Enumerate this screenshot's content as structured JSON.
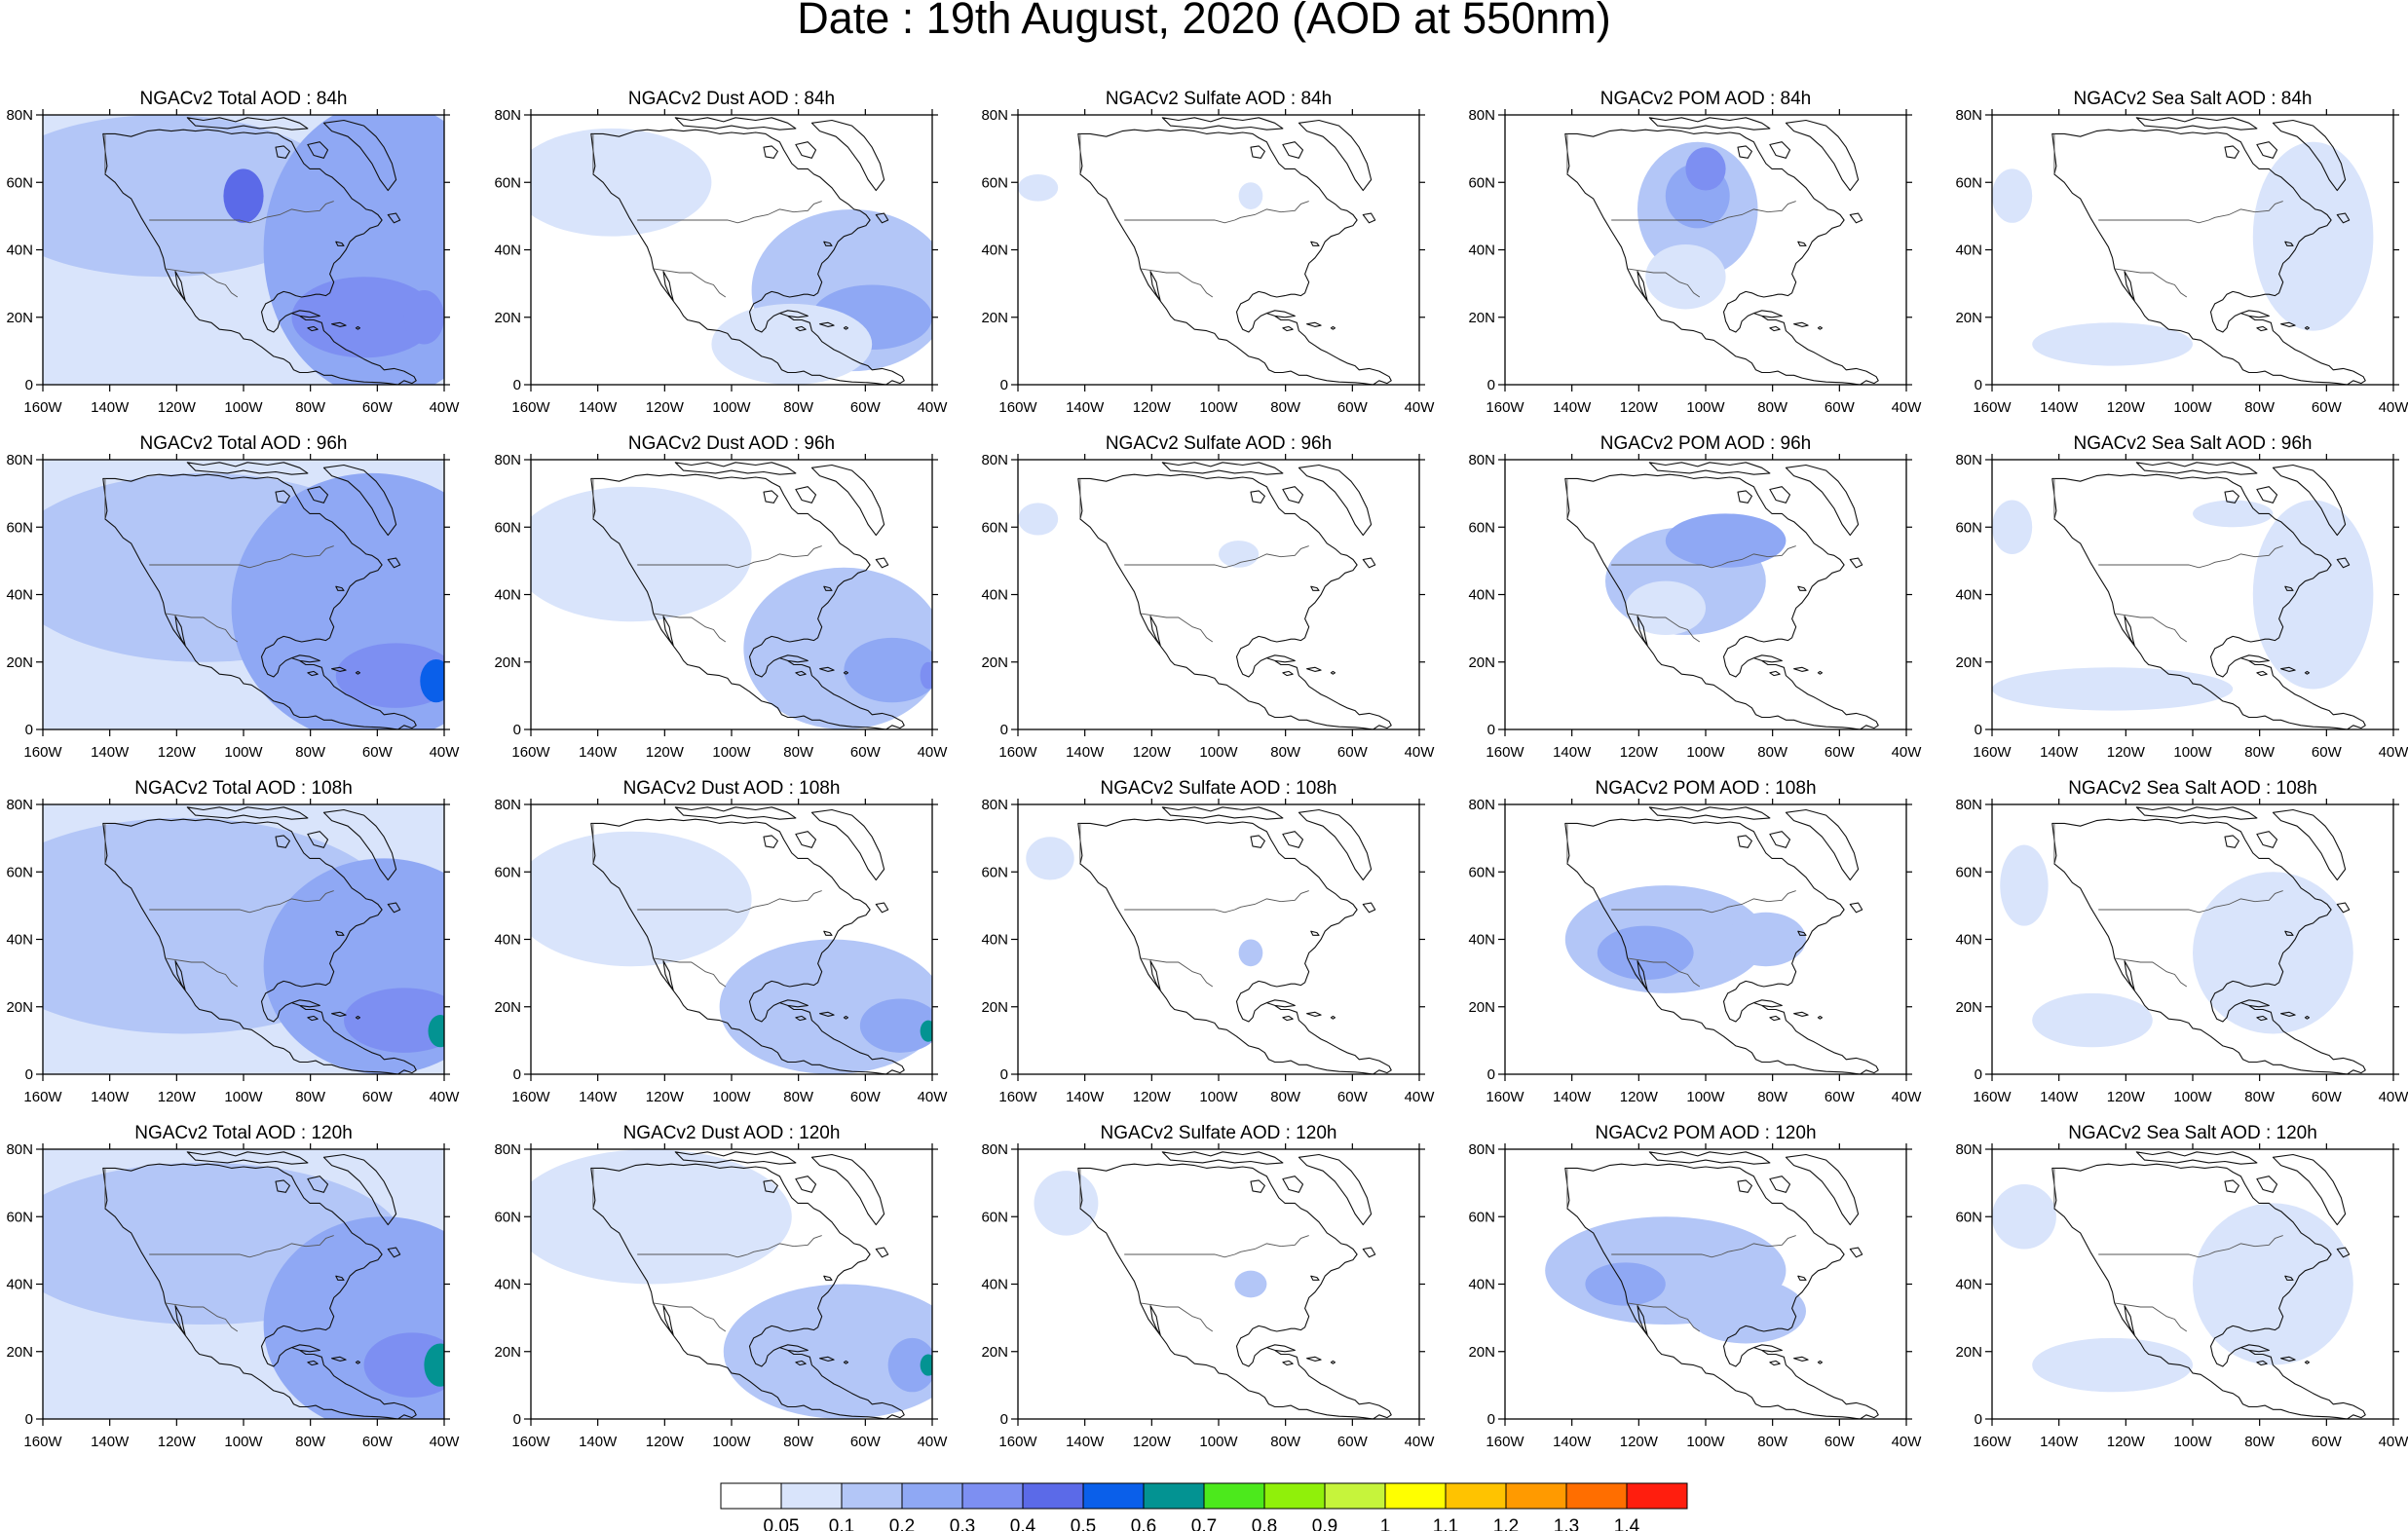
{
  "figure": {
    "title": "Date : 19th August, 2020 (AOD at 550nm)"
  },
  "map": {
    "lon_ticks": [
      "160W",
      "140W",
      "120W",
      "100W",
      "80W",
      "60W",
      "40W"
    ],
    "lat_ticks": [
      "0",
      "20N",
      "40N",
      "60N",
      "80N"
    ],
    "lon_range": [
      -160,
      -40
    ],
    "lat_range": [
      0,
      80
    ]
  },
  "panels": [
    [
      {
        "title": "NGACv2 Total AOD : 84h",
        "species": "total",
        "lead_hours": 84
      },
      {
        "title": "NGACv2 Dust AOD : 84h",
        "species": "dust",
        "lead_hours": 84
      },
      {
        "title": "NGACv2 Sulfate AOD : 84h",
        "species": "sulfate",
        "lead_hours": 84
      },
      {
        "title": "NGACv2 POM AOD : 84h",
        "species": "pom",
        "lead_hours": 84
      },
      {
        "title": "NGACv2 Sea Salt AOD : 84h",
        "species": "seasalt",
        "lead_hours": 84
      }
    ],
    [
      {
        "title": "NGACv2 Total AOD : 96h",
        "species": "total",
        "lead_hours": 96
      },
      {
        "title": "NGACv2 Dust AOD : 96h",
        "species": "dust",
        "lead_hours": 96
      },
      {
        "title": "NGACv2 Sulfate AOD : 96h",
        "species": "sulfate",
        "lead_hours": 96
      },
      {
        "title": "NGACv2 POM AOD : 96h",
        "species": "pom",
        "lead_hours": 96
      },
      {
        "title": "NGACv2 Sea Salt AOD : 96h",
        "species": "seasalt",
        "lead_hours": 96
      }
    ],
    [
      {
        "title": "NGACv2 Total AOD : 108h",
        "species": "total",
        "lead_hours": 108
      },
      {
        "title": "NGACv2 Dust AOD : 108h",
        "species": "dust",
        "lead_hours": 108
      },
      {
        "title": "NGACv2 Sulfate AOD : 108h",
        "species": "sulfate",
        "lead_hours": 108
      },
      {
        "title": "NGACv2 POM AOD : 108h",
        "species": "pom",
        "lead_hours": 108
      },
      {
        "title": "NGACv2 Sea Salt AOD : 108h",
        "species": "seasalt",
        "lead_hours": 108
      }
    ],
    [
      {
        "title": "NGACv2 Total AOD : 120h",
        "species": "total",
        "lead_hours": 120
      },
      {
        "title": "NGACv2 Dust AOD : 120h",
        "species": "dust",
        "lead_hours": 120
      },
      {
        "title": "NGACv2 Sulfate AOD : 120h",
        "species": "sulfate",
        "lead_hours": 120
      },
      {
        "title": "NGACv2 POM AOD : 120h",
        "species": "pom",
        "lead_hours": 120
      },
      {
        "title": "NGACv2 Sea Salt  AOD : 120h",
        "species": "seasalt",
        "lead_hours": 120
      }
    ]
  ],
  "colorbar": {
    "boundaries": [
      "0.05",
      "0.1",
      "0.2",
      "0.3",
      "0.4",
      "0.5",
      "0.6",
      "0.7",
      "0.8",
      "0.9",
      "1",
      "1.1",
      "1.2",
      "1.3",
      "1.4"
    ],
    "colors": [
      "#ffffff",
      "#d9e4fb",
      "#b3c6f7",
      "#8fa8f4",
      "#7d8ff2",
      "#5b6ae8",
      "#0a5fea",
      "#039392",
      "#4ce91c",
      "#90f00a",
      "#c6f43b",
      "#ffff00",
      "#ffc300",
      "#ff9a00",
      "#ff6e00",
      "#ff1e0e"
    ]
  },
  "chart_data": {
    "type": "heatmap",
    "title": "Date : 19th August, 2020 (AOD at 550nm)",
    "variables": [
      "Total AOD",
      "Dust AOD",
      "Sulfate AOD",
      "POM AOD",
      "Sea Salt AOD"
    ],
    "lead_hours": [
      84,
      96,
      108,
      120
    ],
    "x_ticks": [
      "160W",
      "140W",
      "120W",
      "100W",
      "80W",
      "60W",
      "40W"
    ],
    "y_ticks": [
      "0",
      "20N",
      "40N",
      "60N",
      "80N"
    ],
    "xlim": [
      -160,
      -40
    ],
    "ylim": [
      0,
      80
    ],
    "color_levels": [
      0.05,
      0.1,
      0.2,
      0.3,
      0.4,
      0.5,
      0.6,
      0.7,
      0.8,
      0.9,
      1,
      1.1,
      1.2,
      1.3,
      1.4
    ],
    "grid": false
  }
}
